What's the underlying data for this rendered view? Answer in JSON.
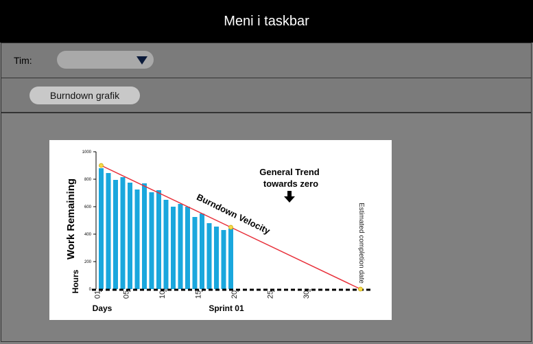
{
  "taskbar": {
    "title": "Meni i taskbar"
  },
  "team": {
    "label": "Tim:"
  },
  "button": {
    "label": "Burndown grafik"
  },
  "chart_data": {
    "type": "bar",
    "x": [
      1,
      2,
      3,
      4,
      5,
      6,
      7,
      8,
      9,
      10,
      11,
      12,
      13,
      14,
      15,
      16,
      17,
      18,
      19
    ],
    "values": [
      880,
      845,
      795,
      815,
      775,
      725,
      770,
      705,
      720,
      650,
      600,
      620,
      600,
      525,
      550,
      480,
      455,
      430,
      440
    ],
    "color": "#1aa7dd",
    "trend": {
      "x": [
        1,
        19,
        37
      ],
      "values": [
        900,
        450,
        0
      ],
      "color": "#e8303a",
      "marker_color": "#f5d94a"
    },
    "xlim": [
      -1,
      39
    ],
    "ylim": [
      0,
      1000
    ],
    "xticks": [
      {
        "value": 1,
        "label": "01"
      },
      {
        "value": 5,
        "label": "05"
      },
      10,
      15,
      20,
      25,
      30
    ],
    "yticks": [
      0,
      200,
      400,
      600,
      800,
      1000
    ],
    "y_label": "Work Remaining",
    "y_unit": "Hours",
    "x_label": "Days",
    "x_sub_label": "Sprint 01",
    "annotations": {
      "trend_line1": "General Trend",
      "trend_line2": "towards zero",
      "velocity": "Burndown Velocity",
      "completion": "Estimated completion date"
    }
  }
}
